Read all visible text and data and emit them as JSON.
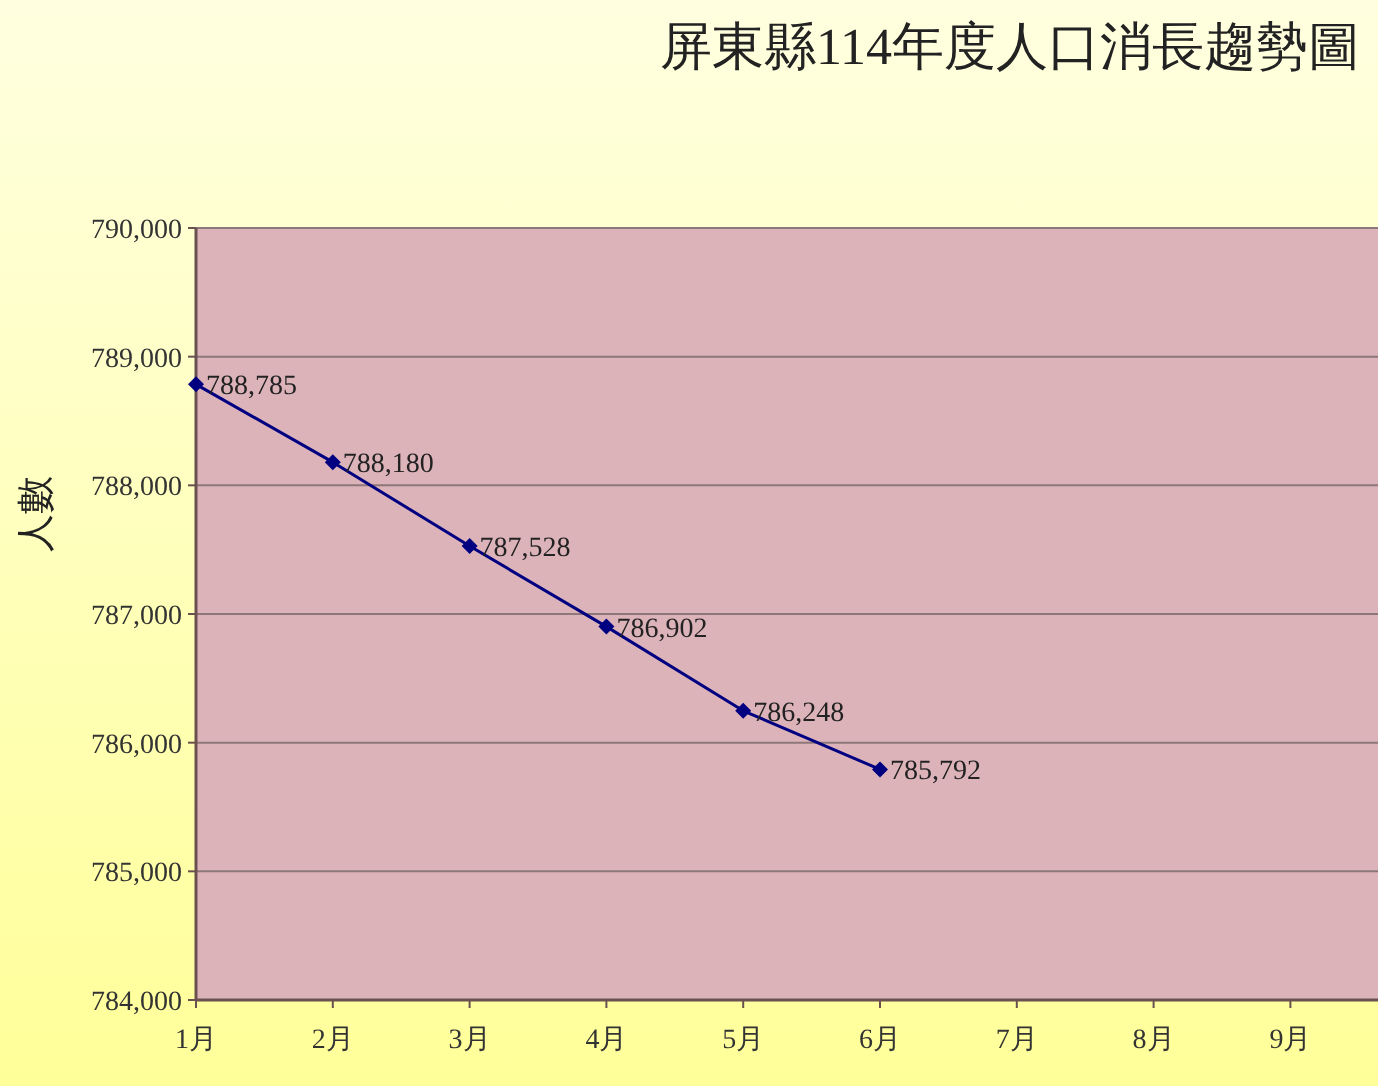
{
  "chart_data": {
    "type": "line",
    "title": "屏東縣114年度人口消長趨勢圖",
    "ylabel": "人數",
    "categories": [
      "1月",
      "2月",
      "3月",
      "4月",
      "5月",
      "6月",
      "7月",
      "8月",
      "9月"
    ],
    "series": [
      {
        "color": "#000080",
        "values": [
          788785,
          788180,
          787528,
          786902,
          786248,
          785792,
          null,
          null,
          null
        ],
        "value_labels": [
          "788,785",
          "788,180",
          "787,528",
          "786,902",
          "786,248",
          "785,792",
          null,
          null,
          null
        ]
      }
    ],
    "ylim": [
      784000,
      790000
    ],
    "yticks": [
      {
        "value": 784000,
        "label": "784,000"
      },
      {
        "value": 785000,
        "label": "785,000"
      },
      {
        "value": 786000,
        "label": "786,000"
      },
      {
        "value": 787000,
        "label": "787,000"
      },
      {
        "value": 788000,
        "label": "788,000"
      },
      {
        "value": 789000,
        "label": "789,000"
      },
      {
        "value": 790000,
        "label": "790,000"
      }
    ],
    "grid": "y",
    "marker": "diamond",
    "line_style": "solid"
  }
}
